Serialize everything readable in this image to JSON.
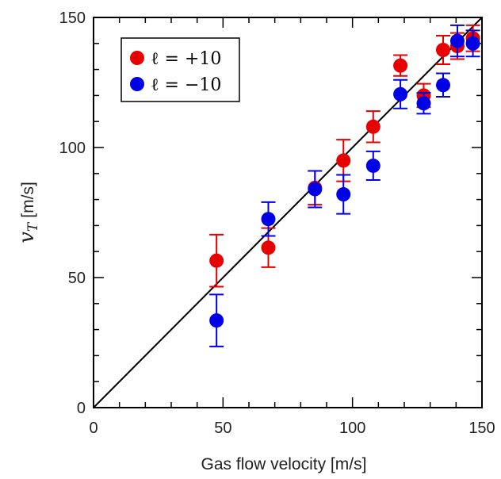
{
  "chart_data": {
    "type": "scatter",
    "xlabel": "Gas flow velocity [m/s]",
    "ylabel": {
      "symbol": "v",
      "subscript": "T",
      "unit": "[m/s]"
    },
    "xlim": [
      0,
      150
    ],
    "ylim": [
      0,
      150
    ],
    "x_ticks": [
      0,
      50,
      100,
      150
    ],
    "y_ticks": [
      0,
      50,
      100,
      150
    ],
    "x_tick_labels": [
      "0",
      "50",
      "100",
      "150"
    ],
    "y_tick_labels": [
      "0",
      "50",
      "100",
      "150"
    ],
    "minor_tick_step": 10,
    "grid": false,
    "legend_position": "top-left",
    "reference_line": {
      "from": [
        0,
        0
      ],
      "to": [
        150,
        150
      ],
      "color": "#000000"
    },
    "series": [
      {
        "name": "ℓ = +10",
        "color": "#e60000",
        "points": [
          {
            "x": 47.5,
            "y": 56.5,
            "err": 10
          },
          {
            "x": 67.5,
            "y": 61.5,
            "err": 7.5
          },
          {
            "x": 85.5,
            "y": 84.5,
            "err": 6.5
          },
          {
            "x": 96.5,
            "y": 95,
            "err": 8
          },
          {
            "x": 108,
            "y": 108,
            "err": 6
          },
          {
            "x": 118.5,
            "y": 131.5,
            "err": 4
          },
          {
            "x": 127.5,
            "y": 120,
            "err": 4.5
          },
          {
            "x": 135,
            "y": 137.5,
            "err": 5.5
          },
          {
            "x": 140.5,
            "y": 139,
            "err": 5
          },
          {
            "x": 146.5,
            "y": 142,
            "err": 5
          }
        ]
      },
      {
        "name": "ℓ = −10",
        "color": "#0000e6",
        "points": [
          {
            "x": 47.5,
            "y": 33.5,
            "err": 10
          },
          {
            "x": 67.5,
            "y": 72.5,
            "err": 6.5
          },
          {
            "x": 85.5,
            "y": 84,
            "err": 7
          },
          {
            "x": 96.5,
            "y": 82,
            "err": 7.5
          },
          {
            "x": 108,
            "y": 93,
            "err": 5.5
          },
          {
            "x": 118.5,
            "y": 120.5,
            "err": 5.5
          },
          {
            "x": 127.5,
            "y": 117,
            "err": 4
          },
          {
            "x": 135,
            "y": 124,
            "err": 4.5
          },
          {
            "x": 140.5,
            "y": 141,
            "err": 6
          },
          {
            "x": 146.5,
            "y": 140,
            "err": 5
          }
        ]
      }
    ]
  }
}
